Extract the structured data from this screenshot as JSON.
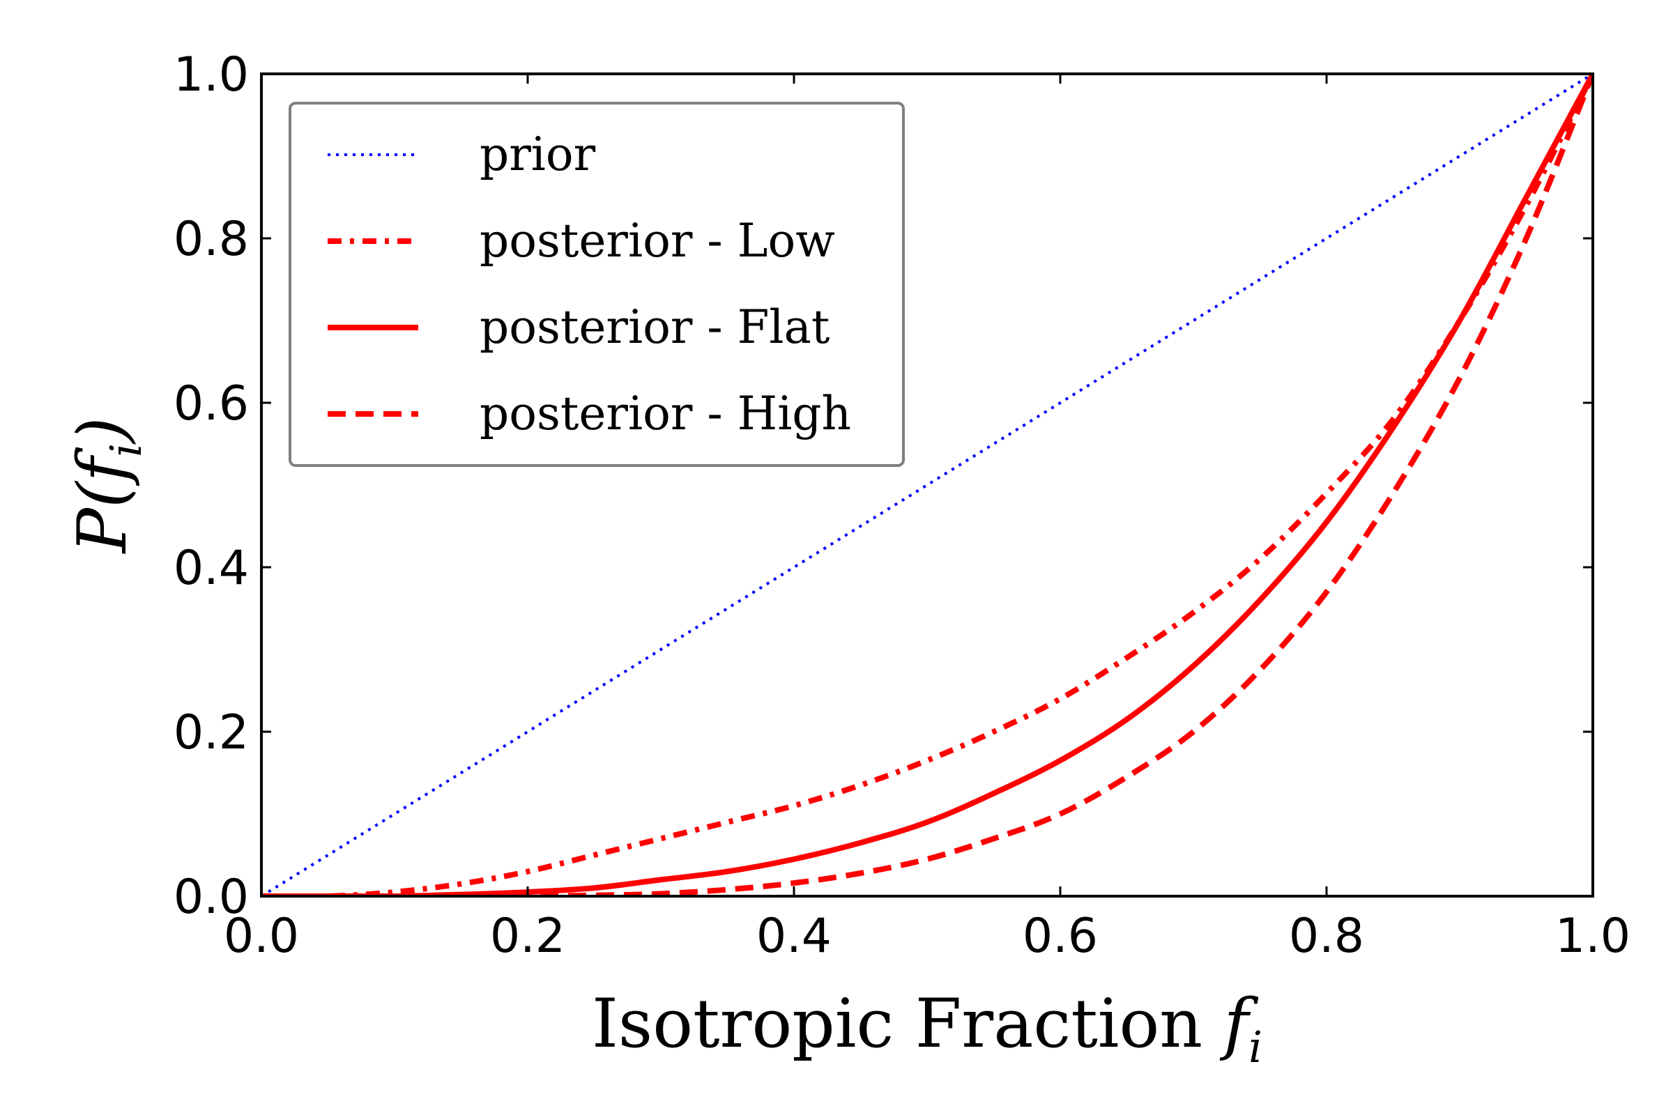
{
  "chart_data": {
    "type": "line",
    "xlabel": "Isotropic Fraction",
    "xlabel_math": "f",
    "xlabel_math_sub": "i",
    "ylabel_prefix": "P(",
    "ylabel_math": "f",
    "ylabel_math_sub": "i",
    "ylabel_suffix": ")",
    "xlim": [
      0.0,
      1.0
    ],
    "ylim": [
      0.0,
      1.0
    ],
    "xticks": [
      "0.0",
      "0.2",
      "0.4",
      "0.6",
      "0.8",
      "1.0"
    ],
    "yticks": [
      "0.0",
      "0.2",
      "0.4",
      "0.6",
      "0.8",
      "1.0"
    ],
    "grid": false,
    "legend_position": "top-left",
    "x": [
      0.0,
      0.05,
      0.1,
      0.15,
      0.2,
      0.25,
      0.3,
      0.35,
      0.4,
      0.45,
      0.5,
      0.55,
      0.6,
      0.65,
      0.7,
      0.75,
      0.8,
      0.85,
      0.9,
      0.95,
      1.0
    ],
    "series": [
      {
        "name": "prior",
        "color": "#0000ff",
        "style": "dotted",
        "values": [
          0.0,
          0.05,
          0.1,
          0.15,
          0.2,
          0.25,
          0.3,
          0.35,
          0.4,
          0.45,
          0.5,
          0.55,
          0.6,
          0.65,
          0.7,
          0.75,
          0.8,
          0.85,
          0.9,
          0.95,
          1.0
        ]
      },
      {
        "name": "posterior - Low",
        "color": "#ff0000",
        "style": "dashdot",
        "values": [
          0.0,
          0.0,
          0.005,
          0.015,
          0.03,
          0.05,
          0.07,
          0.09,
          0.11,
          0.135,
          0.165,
          0.2,
          0.24,
          0.29,
          0.345,
          0.41,
          0.49,
          0.58,
          0.7,
          0.84,
          1.0
        ]
      },
      {
        "name": "posterior - Flat",
        "color": "#ff0000",
        "style": "solid",
        "values": [
          0.0,
          0.0,
          0.0,
          0.002,
          0.005,
          0.01,
          0.02,
          0.03,
          0.045,
          0.065,
          0.09,
          0.125,
          0.165,
          0.215,
          0.28,
          0.36,
          0.455,
          0.57,
          0.7,
          0.85,
          1.0
        ]
      },
      {
        "name": "posterior - High",
        "color": "#ff0000",
        "style": "dashed",
        "values": [
          0.0,
          0.0,
          0.0,
          0.0,
          0.0,
          0.001,
          0.003,
          0.008,
          0.016,
          0.028,
          0.045,
          0.07,
          0.1,
          0.145,
          0.2,
          0.275,
          0.37,
          0.49,
          0.63,
          0.8,
          1.0
        ]
      }
    ]
  }
}
